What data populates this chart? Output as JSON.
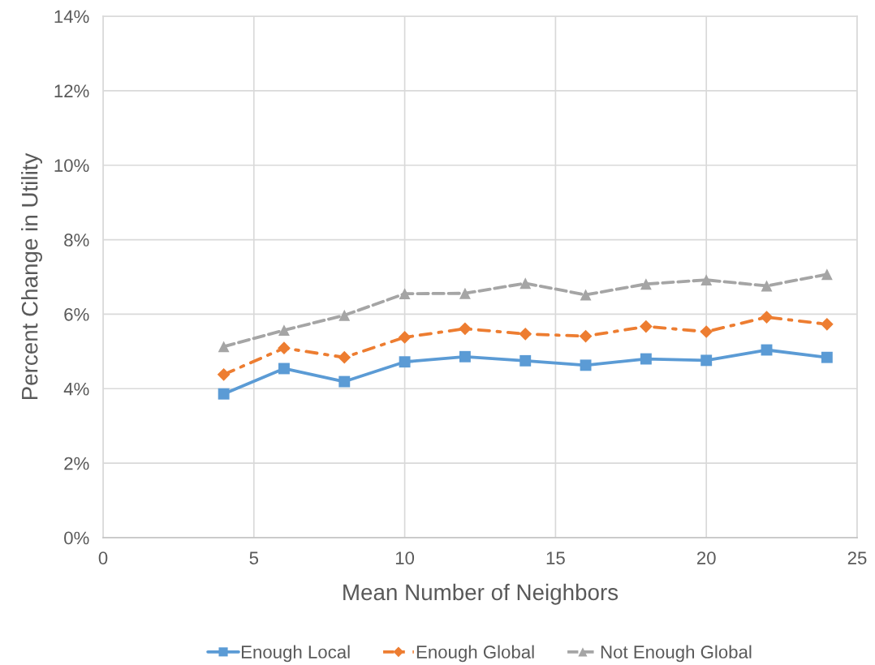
{
  "chart_data": {
    "type": "line",
    "xlabel": "Mean Number of Neighbors",
    "ylabel": "Percent Change in Utility",
    "x": [
      4,
      6,
      8,
      10,
      12,
      14,
      16,
      18,
      20,
      22,
      24
    ],
    "series": [
      {
        "name": "Enough Local",
        "color": "#5b9bd5",
        "marker": "square",
        "line_style": "solid",
        "values": [
          3.86,
          4.54,
          4.19,
          4.72,
          4.86,
          4.75,
          4.63,
          4.8,
          4.76,
          5.04,
          4.84
        ]
      },
      {
        "name": "Enough Global",
        "color": "#ed7d31",
        "marker": "diamond",
        "line_style": "dashdot",
        "values": [
          4.38,
          5.09,
          4.84,
          5.38,
          5.61,
          5.47,
          5.41,
          5.67,
          5.53,
          5.92,
          5.73
        ]
      },
      {
        "name": "Not Enough Global",
        "color": "#a5a5a5",
        "marker": "triangle",
        "line_style": "dashed",
        "values": [
          5.13,
          5.57,
          5.97,
          6.55,
          6.56,
          6.83,
          6.52,
          6.81,
          6.92,
          6.76,
          7.07
        ]
      }
    ],
    "xlim": [
      0,
      25
    ],
    "xticks": [
      0,
      5,
      10,
      15,
      20,
      25
    ],
    "ylim": [
      0,
      14
    ],
    "yticks": [
      {
        "value": 0,
        "label": "0%"
      },
      {
        "value": 2,
        "label": "2%"
      },
      {
        "value": 4,
        "label": "4%"
      },
      {
        "value": 6,
        "label": "6%"
      },
      {
        "value": 8,
        "label": "8%"
      },
      {
        "value": 10,
        "label": "10%"
      },
      {
        "value": 12,
        "label": "12%"
      },
      {
        "value": 14,
        "label": "14%"
      }
    ],
    "grid": true,
    "legend": "bottom"
  }
}
